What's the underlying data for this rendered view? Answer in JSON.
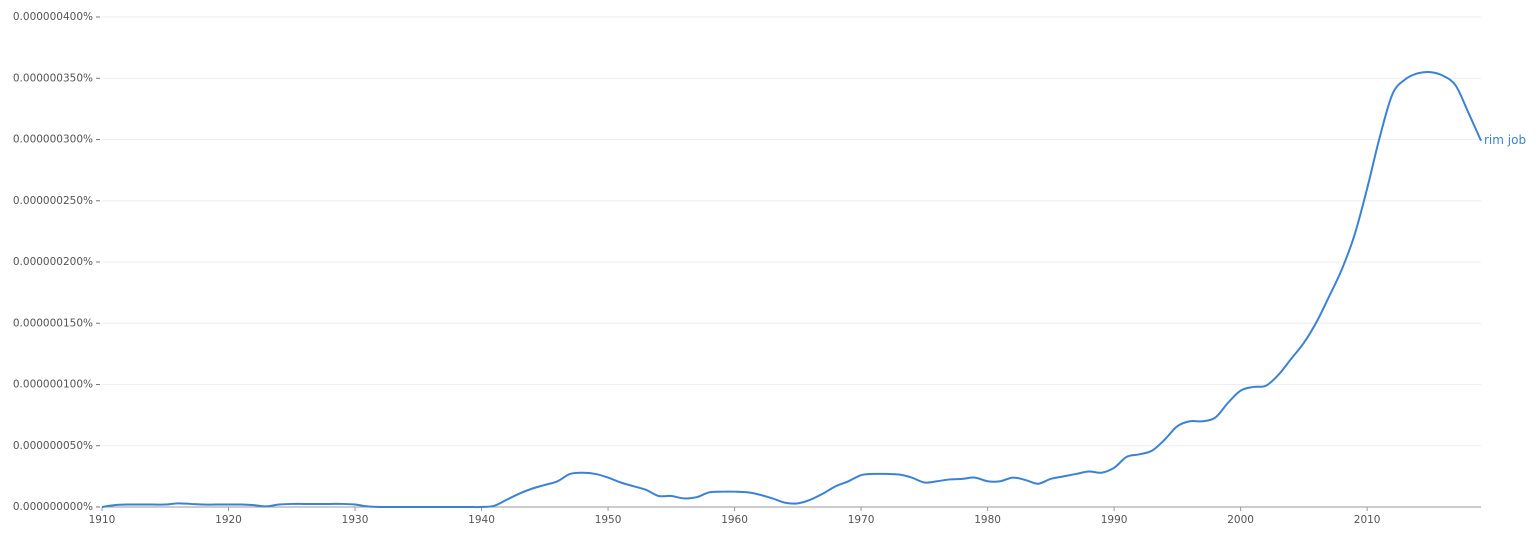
{
  "chart_data": {
    "type": "line",
    "x": [
      1910,
      1911,
      1912,
      1913,
      1914,
      1915,
      1916,
      1917,
      1918,
      1919,
      1920,
      1921,
      1922,
      1923,
      1924,
      1925,
      1926,
      1927,
      1928,
      1929,
      1930,
      1931,
      1932,
      1933,
      1934,
      1935,
      1936,
      1937,
      1938,
      1939,
      1940,
      1941,
      1942,
      1943,
      1944,
      1945,
      1946,
      1947,
      1948,
      1949,
      1950,
      1951,
      1952,
      1953,
      1954,
      1955,
      1956,
      1957,
      1958,
      1959,
      1960,
      1961,
      1962,
      1963,
      1964,
      1965,
      1966,
      1967,
      1968,
      1969,
      1970,
      1971,
      1972,
      1973,
      1974,
      1975,
      1976,
      1977,
      1978,
      1979,
      1980,
      1981,
      1982,
      1983,
      1984,
      1985,
      1986,
      1987,
      1988,
      1989,
      1990,
      1991,
      1992,
      1993,
      1994,
      1995,
      1996,
      1997,
      1998,
      1999,
      2000,
      2001,
      2002,
      2003,
      2004,
      2005,
      2006,
      2007,
      2008,
      2009,
      2010,
      2011,
      2012,
      2013,
      2014,
      2015,
      2016,
      2017,
      2018,
      2019
    ],
    "series": [
      {
        "name": "rim job",
        "color": "#3b82d6",
        "values": [
          0,
          1.5e-09,
          2e-09,
          2e-09,
          2e-09,
          2e-09,
          3e-09,
          2.5e-09,
          2e-09,
          2e-09,
          2e-09,
          2e-09,
          1.5e-09,
          5e-10,
          2e-09,
          2.5e-09,
          2.5e-09,
          2.5e-09,
          2.5e-09,
          2.5e-09,
          2e-09,
          5e-10,
          0,
          0,
          0,
          0,
          0,
          0,
          0,
          0,
          0,
          1e-09,
          6e-09,
          1.1e-08,
          1.5e-08,
          1.8e-08,
          2.1e-08,
          2.7e-08,
          2.8e-08,
          2.7e-08,
          2.4e-08,
          2e-08,
          1.7e-08,
          1.4e-08,
          9e-09,
          9e-09,
          7e-09,
          8e-09,
          1.2e-08,
          1.25e-08,
          1.25e-08,
          1.2e-08,
          1e-08,
          7e-09,
          3.5e-09,
          3e-09,
          6e-09,
          1.1e-08,
          1.7e-08,
          2.1e-08,
          2.6e-08,
          2.7e-08,
          2.7e-08,
          2.65e-08,
          2.4e-08,
          2e-08,
          2.1e-08,
          2.25e-08,
          2.3e-08,
          2.4e-08,
          2.1e-08,
          2.1e-08,
          2.4e-08,
          2.2e-08,
          1.9e-08,
          2.3e-08,
          2.5e-08,
          2.7e-08,
          2.9e-08,
          2.8e-08,
          3.2e-08,
          4.1e-08,
          4.3e-08,
          4.6e-08,
          5.5e-08,
          6.6e-08,
          7e-08,
          7e-08,
          7.3e-08,
          8.5e-08,
          9.5e-08,
          9.8e-08,
          9.9e-08,
          1.08e-07,
          1.21e-07,
          1.34e-07,
          1.51e-07,
          1.72e-07,
          1.94e-07,
          2.22e-07,
          2.6e-07,
          3.02e-07,
          3.37e-07,
          3.49e-07,
          3.54e-07,
          3.55e-07,
          3.52e-07,
          3.44e-07,
          3.22e-07,
          2.99e-07
        ]
      }
    ],
    "xlim": [
      1910,
      2019
    ],
    "xticks": [
      1910,
      1920,
      1930,
      1940,
      1950,
      1960,
      1970,
      1980,
      1990,
      2000,
      2010
    ],
    "ylim": [
      0,
      4e-07
    ],
    "yticks": [
      {
        "value": 0,
        "label": "0.000000000%"
      },
      {
        "value": 5e-08,
        "label": "0.000000050%"
      },
      {
        "value": 1e-07,
        "label": "0.000000100%"
      },
      {
        "value": 1.5e-07,
        "label": "0.000000150%"
      },
      {
        "value": 2e-07,
        "label": "0.000000200%"
      },
      {
        "value": 2.5e-07,
        "label": "0.000000250%"
      },
      {
        "value": 3e-07,
        "label": "0.000000300%"
      },
      {
        "value": 3.5e-07,
        "label": "0.000000350%"
      },
      {
        "value": 4e-07,
        "label": "0.000000400%"
      }
    ],
    "grid": true
  }
}
